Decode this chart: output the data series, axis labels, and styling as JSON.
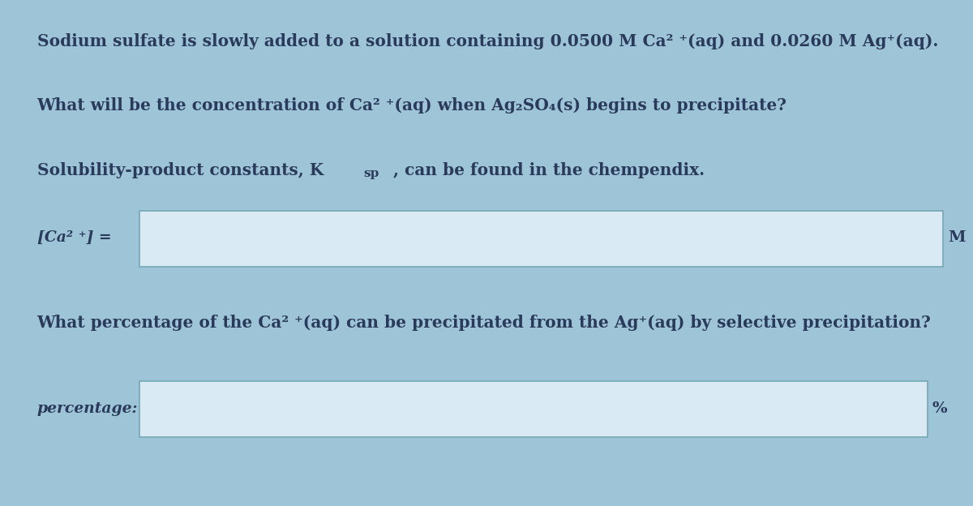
{
  "background_color": "#9ec4d8",
  "text_color": "#2a3a5a",
  "line1": "Sodium sulfate is slowly added to a solution containing 0.0500 M Ca² ⁺(aq) and 0.0260 M Ag⁺(aq).",
  "line2": "What will be the concentration of Ca² ⁺(aq) when Ag₂SO₄(s) begins to precipitate?",
  "line3_pre": "Solubility-product constants, K",
  "line3_sub": "sp",
  "line3_post": ", can be found in the chempendix.",
  "label1": "[Ca² ⁺] =",
  "unit1": "M",
  "line4": "What percentage of the Ca² ⁺(aq) can be precipitated from the Ag⁺(aq) by selective precipitation?",
  "label2": "percentage:",
  "unit2": "%",
  "font_size_main": 14.5,
  "font_size_label": 13.5,
  "font_size_unit": 14.0,
  "box_edge_color": "#7aabb8",
  "box_face_color": "#daeaf4"
}
